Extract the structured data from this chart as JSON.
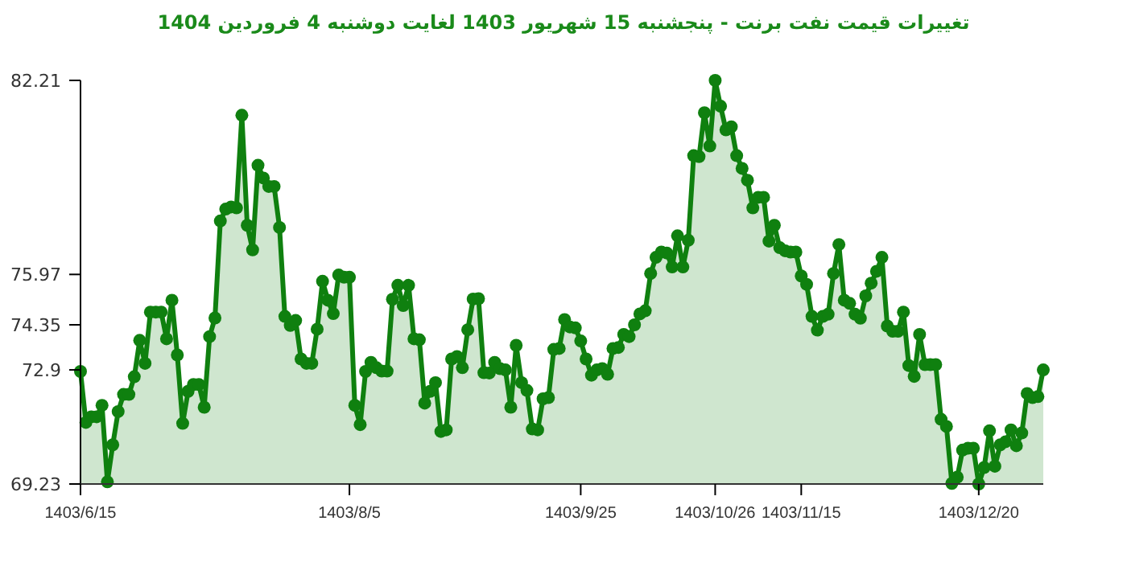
{
  "chart_data": {
    "type": "area",
    "title": "تغییرات قیمت نفت برنت - پنجشنبه  15 شهریور 1403 لغایت  دوشنبه  4 فروردین 1404",
    "categories": [
      "1403/6/15",
      null,
      null,
      null,
      null,
      null,
      null,
      null,
      null,
      null,
      null,
      null,
      null,
      null,
      null,
      null,
      null,
      null,
      null,
      null,
      null,
      null,
      null,
      null,
      null,
      null,
      null,
      null,
      null,
      null,
      null,
      null,
      null,
      null,
      null,
      null,
      null,
      null,
      null,
      null,
      null,
      null,
      null,
      null,
      null,
      null,
      null,
      null,
      null,
      null,
      "1403/8/5",
      null,
      null,
      null,
      null,
      null,
      null,
      null,
      null,
      null,
      null,
      null,
      null,
      null,
      null,
      null,
      null,
      null,
      null,
      null,
      null,
      null,
      null,
      null,
      null,
      null,
      null,
      null,
      null,
      null,
      null,
      null,
      null,
      null,
      null,
      null,
      null,
      null,
      null,
      null,
      null,
      null,
      null,
      "1403/9/25",
      null,
      null,
      null,
      null,
      null,
      null,
      null,
      null,
      null,
      null,
      null,
      null,
      null,
      null,
      null,
      null,
      null,
      null,
      null,
      null,
      null,
      null,
      null,
      null,
      "1403/10/26",
      null,
      null,
      null,
      null,
      null,
      null,
      null,
      null,
      null,
      null,
      null,
      null,
      null,
      null,
      null,
      "1403/11/15",
      null,
      null,
      null,
      null,
      null,
      null,
      null,
      null,
      null,
      null,
      null,
      null,
      null,
      null,
      null,
      null,
      null,
      null,
      null,
      null,
      null,
      null,
      null,
      null,
      null,
      null,
      null,
      null,
      null,
      null,
      null,
      null,
      "1403/12/20",
      null,
      null,
      null,
      null,
      null,
      null,
      null,
      null,
      null,
      null,
      null,
      null
    ],
    "values": [
      72.85,
      71.21,
      71.39,
      71.39,
      71.76,
      69.3,
      70.49,
      71.56,
      72.11,
      72.11,
      72.68,
      73.85,
      73.11,
      74.76,
      74.76,
      74.76,
      73.9,
      75.14,
      73.38,
      71.18,
      72.21,
      72.43,
      72.43,
      71.7,
      73.97,
      74.57,
      77.69,
      78.07,
      78.14,
      78.11,
      81.09,
      77.55,
      76.76,
      79.48,
      79.07,
      78.8,
      78.8,
      77.48,
      74.62,
      74.33,
      74.49,
      73.25,
      73.11,
      73.11,
      74.21,
      75.75,
      75.14,
      74.71,
      75.95,
      75.88,
      75.88,
      71.76,
      71.14,
      72.85,
      73.14,
      72.97,
      72.86,
      72.86,
      75.17,
      75.62,
      74.97,
      75.62,
      73.9,
      73.87,
      71.83,
      72.21,
      72.49,
      70.92,
      70.97,
      73.25,
      73.33,
      72.97,
      74.19,
      75.18,
      75.19,
      72.81,
      72.8,
      73.14,
      72.94,
      72.9,
      71.7,
      73.69,
      72.49,
      72.24,
      71.0,
      70.97,
      71.97,
      72.01,
      73.56,
      73.59,
      74.52,
      74.28,
      74.25,
      73.83,
      73.25,
      72.73,
      72.9,
      72.94,
      72.76,
      73.59,
      73.62,
      74.04,
      73.97,
      74.35,
      74.7,
      74.8,
      76.0,
      76.52,
      76.69,
      76.66,
      76.21,
      77.21,
      76.21,
      77.07,
      79.79,
      79.76,
      81.17,
      80.1,
      82.21,
      81.38,
      80.62,
      80.72,
      79.79,
      79.38,
      79.0,
      78.11,
      78.45,
      78.45,
      77.04,
      77.55,
      76.83,
      76.73,
      76.69,
      76.69,
      75.92,
      75.65,
      74.62,
      74.18,
      74.62,
      74.69,
      76.0,
      76.93,
      75.14,
      75.04,
      74.69,
      74.56,
      75.28,
      75.69,
      76.07,
      76.52,
      74.31,
      74.14,
      74.14,
      74.76,
      73.04,
      72.69,
      74.04,
      73.07,
      73.07,
      73.07,
      71.31,
      71.08,
      69.25,
      69.45,
      70.32,
      70.38,
      70.38,
      69.23,
      69.76,
      70.94,
      69.8,
      70.49,
      70.59,
      70.97,
      70.46,
      70.87,
      72.14,
      72.01,
      72.04,
      72.9
    ],
    "color": "#0f800f",
    "marker": "circle",
    "ylim": [
      69.23,
      82.21
    ],
    "yticks": [
      69.23,
      {
        "value": 72.9,
        "label": "72.9"
      },
      74.35,
      75.97,
      82.21
    ]
  }
}
